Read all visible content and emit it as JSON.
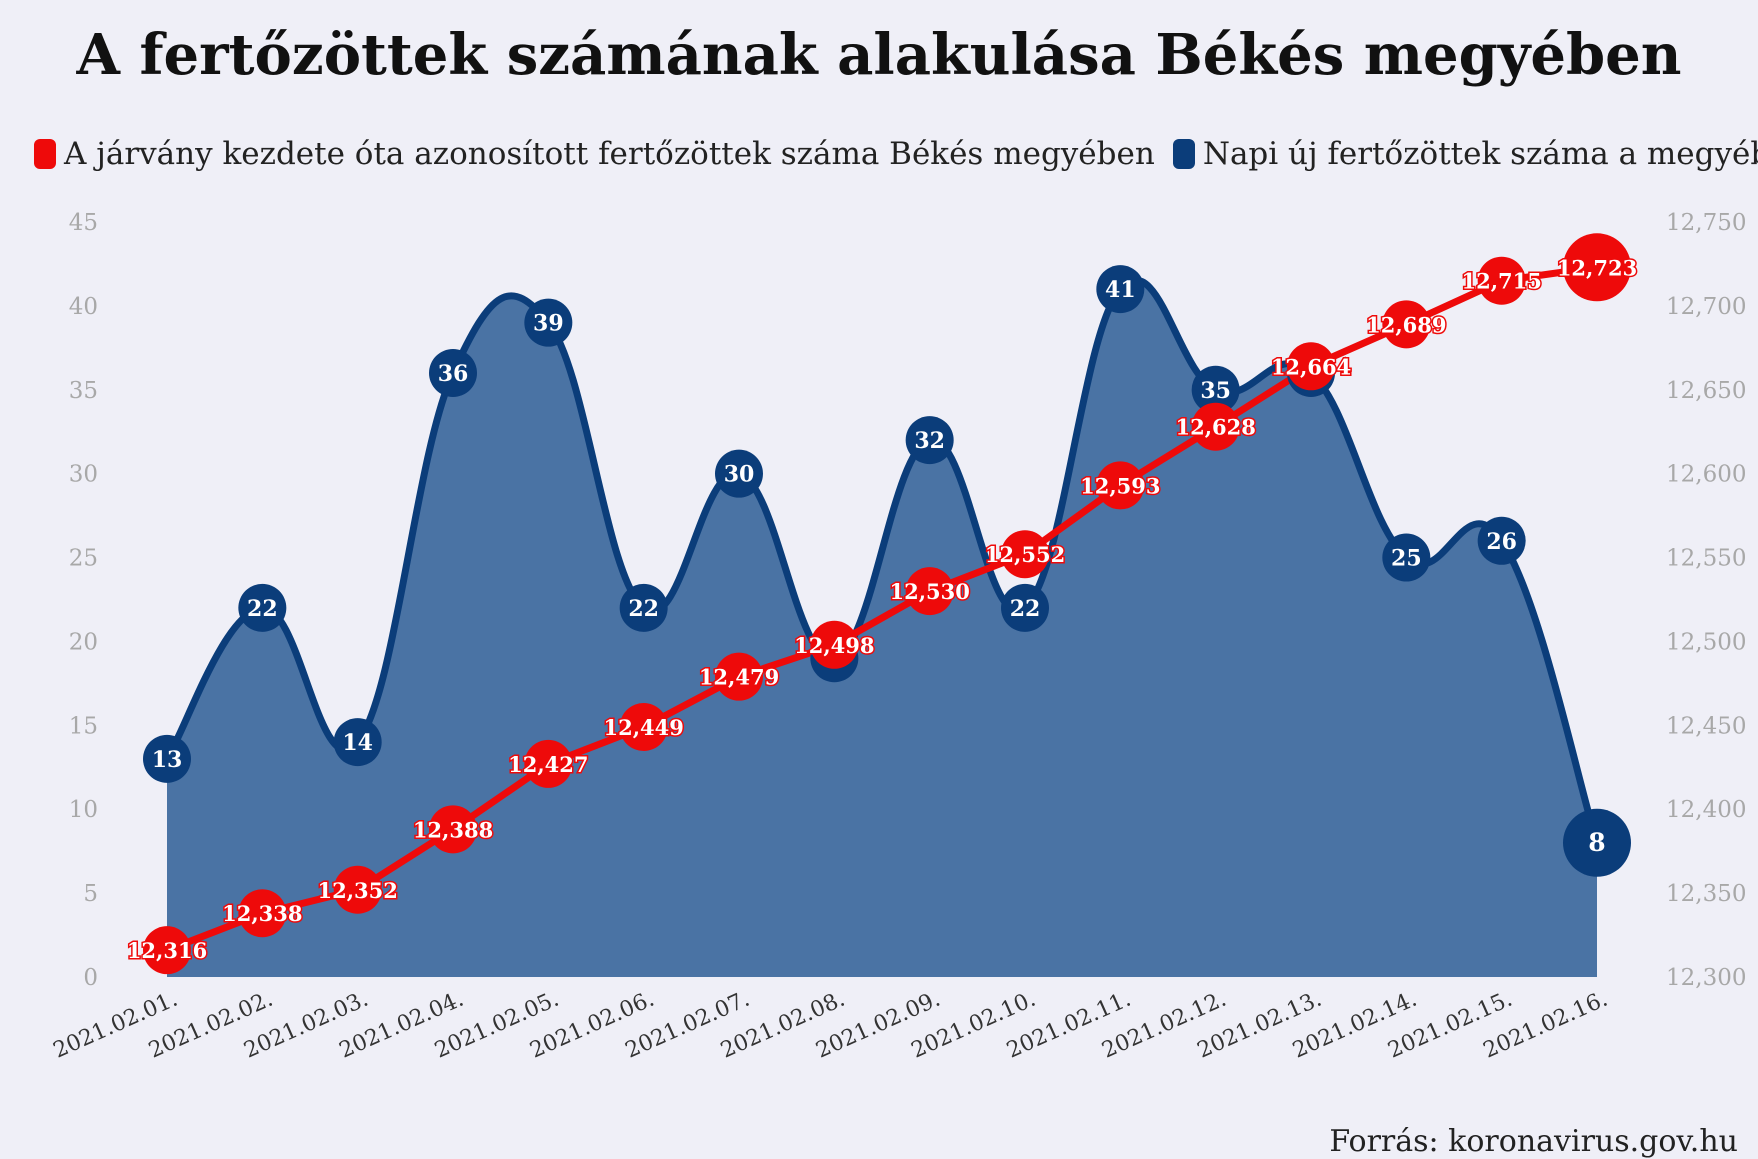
{
  "title": "A fertőzöttek számának alakulása Békés megyében",
  "source": "Forrás: koronavirus.gov.hu",
  "colors": {
    "cumulative": "#ee0a0a",
    "daily_line": "#0b3d7a",
    "daily_fill": "#4a73a4",
    "axis_text": "#a8a8a8",
    "background": "#efeff7"
  },
  "chart_data": {
    "type": "area",
    "categories": [
      "2021.02.01.",
      "2021.02.02.",
      "2021.02.03.",
      "2021.02.04.",
      "2021.02.05.",
      "2021.02.06.",
      "2021.02.07.",
      "2021.02.08.",
      "2021.02.09.",
      "2021.02.10.",
      "2021.02.11.",
      "2021.02.12.",
      "2021.02.13.",
      "2021.02.14.",
      "2021.02.15.",
      "2021.02.16."
    ],
    "series": [
      {
        "name": "A járvány kezdete óta azonosított fertőzöttek száma Békés megyében",
        "axis": "right",
        "type": "line",
        "values": [
          12316,
          12338,
          12352,
          12388,
          12427,
          12449,
          12479,
          12498,
          12530,
          12552,
          12593,
          12628,
          12664,
          12689,
          12715,
          12723
        ],
        "labels": [
          "12,316",
          "12,338",
          "12,352",
          "12,388",
          "12,427",
          "12,449",
          "12,479",
          "12,498",
          "12,530",
          "12,552",
          "12,593",
          "12,628",
          "12,664",
          "12,689",
          "12,715",
          "12,723"
        ]
      },
      {
        "name": "Napi új fertőzöttek száma a megyében",
        "axis": "left",
        "type": "area",
        "values": [
          13,
          22,
          14,
          36,
          39,
          22,
          30,
          19,
          32,
          22,
          41,
          35,
          36,
          25,
          26,
          8
        ],
        "labels": [
          "13",
          "22",
          "14",
          "36",
          "39",
          "22",
          "30",
          "",
          "32",
          "22",
          "41",
          "35",
          "",
          "25",
          "26",
          "8"
        ]
      }
    ],
    "left_axis": {
      "ylim": [
        0,
        45
      ],
      "ticks": [
        0,
        5,
        10,
        15,
        20,
        25,
        30,
        35,
        40,
        45
      ],
      "tick_labels": [
        "0",
        "5",
        "10",
        "15",
        "20",
        "25",
        "30",
        "35",
        "40",
        "45"
      ]
    },
    "right_axis": {
      "ylim": [
        12300,
        12750
      ],
      "ticks": [
        12300,
        12350,
        12400,
        12450,
        12500,
        12550,
        12600,
        12650,
        12700,
        12750
      ],
      "tick_labels": [
        "12,300",
        "12,350",
        "12,400",
        "12,450",
        "12,500",
        "12,550",
        "12,600",
        "12,650",
        "12,700",
        "12,750"
      ]
    },
    "legend_position": "top",
    "grid": false
  }
}
